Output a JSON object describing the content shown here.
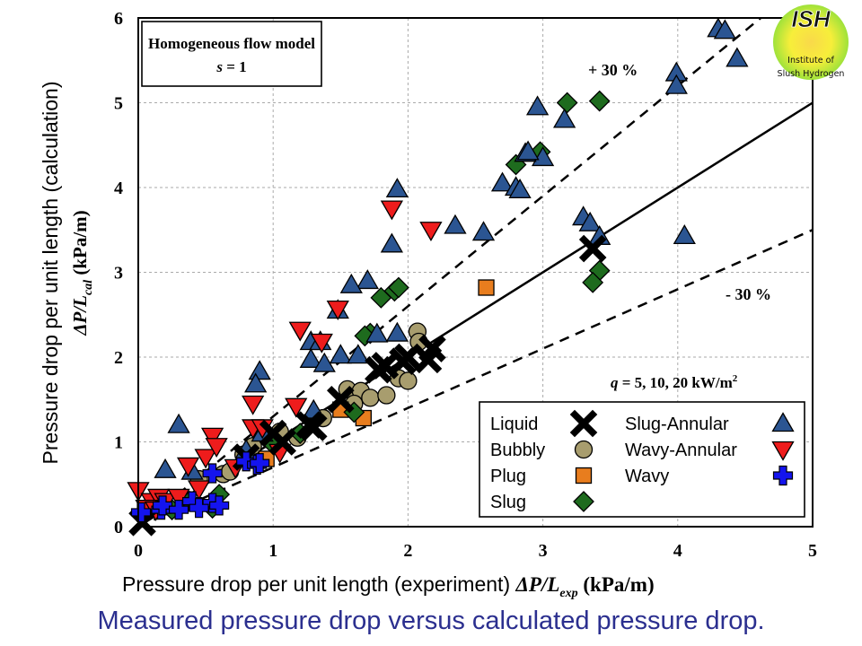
{
  "caption": "Measured pressure drop versus calculated pressure drop.",
  "logo": {
    "name": "ISH",
    "line1": "Institute of",
    "line2": "Slush Hydrogen",
    "colors": {
      "outer": "#9fe23a",
      "inner": "#f7e33a",
      "text": "#111111"
    }
  },
  "chart_data": {
    "type": "scatter",
    "title": "",
    "xlabel": {
      "plain": "Pressure drop per unit length (experiment) ",
      "symbol": "ΔP/L",
      "sub": "exp",
      "unit": " (kPa/m)"
    },
    "ylabel": {
      "plain": "Pressure drop per unit length (calculation)",
      "symbol": "ΔP/L",
      "sub": "cal",
      "unit": " (kPa/m)"
    },
    "xlim": [
      0,
      5
    ],
    "ylim": [
      0,
      6
    ],
    "xticks": [
      "0",
      "1",
      "2",
      "3",
      "4",
      "5"
    ],
    "yticks": [
      "0",
      "1",
      "2",
      "3",
      "4",
      "5",
      "6"
    ],
    "grid": true,
    "model_box": {
      "line1": "Homogeneous flow model",
      "line2_var": "s",
      "line2_rest": " = 1"
    },
    "heat_flux_label": {
      "var": "q",
      "rest": " = 5, 10, 20 kW/m",
      "sup": "2"
    },
    "reference_lines": [
      {
        "name": "y = x",
        "slope": 1.0,
        "style": "solid"
      },
      {
        "name": "+30 %",
        "slope": 1.3,
        "style": "dashed",
        "label": "+ 30 %"
      },
      {
        "name": "-30 %",
        "slope": 0.7,
        "style": "dashed",
        "label": "- 30 %"
      }
    ],
    "legend_position": "bottom-right",
    "series": [
      {
        "name": "Liquid",
        "marker": "x",
        "color": "#000000",
        "points": [
          [
            1.0,
            1.1
          ],
          [
            1.07,
            1.0
          ],
          [
            1.27,
            1.2
          ],
          [
            1.3,
            1.17
          ],
          [
            1.78,
            1.85
          ],
          [
            1.83,
            1.9
          ],
          [
            1.96,
            1.95
          ],
          [
            2.0,
            2.0
          ],
          [
            2.15,
            1.97
          ],
          [
            2.18,
            2.1
          ],
          [
            3.37,
            3.28
          ],
          [
            0.03,
            0.05
          ],
          [
            0.8,
            0.82
          ],
          [
            1.5,
            1.5
          ]
        ]
      },
      {
        "name": "Bubbly",
        "marker": "circle",
        "color": "#a89d6e",
        "points": [
          [
            2.07,
            2.3
          ],
          [
            2.08,
            2.18
          ],
          [
            1.55,
            1.62
          ],
          [
            1.65,
            1.6
          ],
          [
            1.72,
            1.52
          ],
          [
            1.84,
            1.55
          ],
          [
            1.93,
            1.75
          ],
          [
            2.0,
            1.72
          ],
          [
            1.37,
            1.28
          ],
          [
            1.18,
            1.05
          ],
          [
            0.63,
            0.62
          ],
          [
            0.68,
            0.65
          ],
          [
            0.45,
            0.56
          ],
          [
            0.78,
            0.85
          ],
          [
            0.85,
            0.95
          ],
          [
            1.05,
            1.12
          ],
          [
            1.6,
            1.45
          ]
        ]
      },
      {
        "name": "Plug",
        "marker": "square",
        "color": "#e87d1e",
        "points": [
          [
            1.5,
            1.38
          ],
          [
            1.67,
            1.28
          ],
          [
            2.58,
            2.82
          ],
          [
            0.95,
            0.8
          ]
        ]
      },
      {
        "name": "Slug",
        "marker": "diamond",
        "color": "#1e6b1e",
        "points": [
          [
            3.18,
            5.0
          ],
          [
            3.42,
            5.02
          ],
          [
            2.8,
            4.27
          ],
          [
            2.98,
            4.42
          ],
          [
            1.8,
            2.7
          ],
          [
            1.9,
            2.78
          ],
          [
            1.93,
            2.82
          ],
          [
            1.72,
            2.28
          ],
          [
            3.42,
            3.02
          ],
          [
            3.37,
            2.88
          ],
          [
            1.6,
            1.35
          ],
          [
            1.2,
            1.1
          ],
          [
            1.0,
            0.97
          ],
          [
            0.55,
            0.22
          ],
          [
            0.6,
            0.38
          ],
          [
            0.38,
            0.3
          ],
          [
            0.25,
            0.2
          ],
          [
            1.68,
            2.25
          ]
        ]
      },
      {
        "name": "Slug-Annular",
        "marker": "triangle-up",
        "color": "#2b5592",
        "points": [
          [
            4.3,
            5.87
          ],
          [
            4.35,
            5.85
          ],
          [
            4.44,
            5.52
          ],
          [
            3.99,
            5.35
          ],
          [
            3.99,
            5.2
          ],
          [
            2.96,
            4.95
          ],
          [
            3.16,
            4.8
          ],
          [
            3.0,
            4.35
          ],
          [
            2.87,
            4.4
          ],
          [
            2.89,
            4.42
          ],
          [
            2.7,
            4.05
          ],
          [
            2.8,
            4.0
          ],
          [
            2.83,
            3.97
          ],
          [
            3.3,
            3.65
          ],
          [
            3.35,
            3.58
          ],
          [
            3.42,
            3.42
          ],
          [
            4.05,
            3.43
          ],
          [
            2.35,
            3.55
          ],
          [
            2.56,
            3.47
          ],
          [
            1.92,
            3.98
          ],
          [
            1.88,
            3.33
          ],
          [
            1.7,
            2.9
          ],
          [
            1.58,
            2.85
          ],
          [
            1.28,
            2.18
          ],
          [
            1.35,
            2.18
          ],
          [
            1.28,
            1.97
          ],
          [
            1.38,
            1.92
          ],
          [
            1.5,
            2.02
          ],
          [
            1.63,
            2.02
          ],
          [
            0.9,
            1.83
          ],
          [
            0.87,
            1.68
          ],
          [
            0.3,
            1.2
          ],
          [
            0.2,
            0.67
          ],
          [
            1.77,
            2.27
          ],
          [
            1.92,
            2.28
          ],
          [
            1.48,
            2.55
          ],
          [
            0.92,
            1.1
          ],
          [
            0.4,
            0.65
          ],
          [
            1.3,
            1.37
          ],
          [
            0.8,
            0.9
          ]
        ]
      },
      {
        "name": "Wavy-Annular",
        "marker": "triangle-down",
        "color": "#ee1c1c",
        "points": [
          [
            1.88,
            3.75
          ],
          [
            2.17,
            3.5
          ],
          [
            1.48,
            2.57
          ],
          [
            1.2,
            2.32
          ],
          [
            1.36,
            2.18
          ],
          [
            0.85,
            1.45
          ],
          [
            0.85,
            1.17
          ],
          [
            0.92,
            1.17
          ],
          [
            1.17,
            1.42
          ],
          [
            0.5,
            0.82
          ],
          [
            0.55,
            1.07
          ],
          [
            0.58,
            0.95
          ],
          [
            0.37,
            0.72
          ],
          [
            0.0,
            0.43
          ],
          [
            0.1,
            0.3
          ],
          [
            0.15,
            0.35
          ],
          [
            0.2,
            0.3
          ],
          [
            0.3,
            0.35
          ],
          [
            0.45,
            0.45
          ],
          [
            0.72,
            0.7
          ],
          [
            1.05,
            0.88
          ],
          [
            0.06,
            0.22
          ],
          [
            0.13,
            0.2
          ]
        ]
      },
      {
        "name": "Wavy",
        "marker": "plus",
        "color": "#1414ee",
        "points": [
          [
            0.02,
            0.17
          ],
          [
            0.17,
            0.2
          ],
          [
            0.18,
            0.25
          ],
          [
            0.4,
            0.3
          ],
          [
            0.55,
            0.28
          ],
          [
            0.6,
            0.25
          ],
          [
            0.55,
            0.63
          ],
          [
            0.8,
            0.77
          ],
          [
            0.88,
            0.73
          ],
          [
            0.9,
            0.75
          ],
          [
            0.3,
            0.2
          ],
          [
            0.45,
            0.22
          ]
        ]
      }
    ]
  }
}
